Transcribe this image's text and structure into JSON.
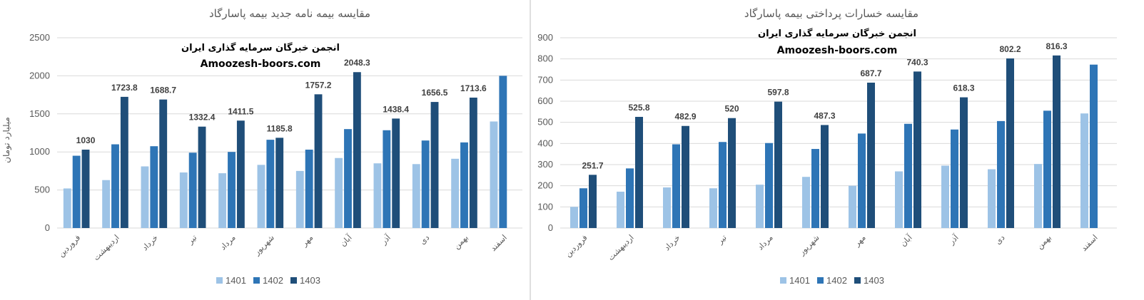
{
  "colors": {
    "s1401": "#9dc3e6",
    "s1402": "#2e75b6",
    "s1403": "#1f4e79",
    "grid": "#d9d9d9",
    "divider": "#bfbfbf"
  },
  "chart_data": [
    {
      "type": "bar",
      "title": "مقایسه بیمه نامه جدید بیمه پاسارگاد",
      "watermark": [
        "انجمن خبرگان سرمایه گذاری ایران",
        "Amoozesh-boors.com"
      ],
      "ylabel": "میلیارد تومان",
      "xlabel": "",
      "ylim": [
        0,
        2500
      ],
      "yticks": [
        0,
        500,
        1000,
        1500,
        2000,
        2500
      ],
      "grid": true,
      "legend_position": "bottom",
      "categories": [
        "فروردین",
        "اردیبهشت",
        "خرداد",
        "تیر",
        "مرداد",
        "شهریور",
        "مهر",
        "آبان",
        "آذر",
        "دی",
        "بهمن",
        "اسفند"
      ],
      "series": [
        {
          "name": "1401",
          "values": [
            520,
            630,
            810,
            730,
            720,
            830,
            750,
            920,
            850,
            840,
            910,
            1400
          ]
        },
        {
          "name": "1402",
          "values": [
            950,
            1100,
            1075,
            990,
            1000,
            1160,
            1030,
            1300,
            1285,
            1150,
            1125,
            2000
          ]
        },
        {
          "name": "1403",
          "values": [
            1030,
            1723.8,
            1688.7,
            1332.4,
            1411.5,
            1185.8,
            1757.2,
            2048.3,
            1438.4,
            1656.5,
            1713.6,
            null
          ]
        }
      ],
      "data_labels": [
        "1030",
        "1723.8",
        "1688.7",
        "1332.4",
        "1411.5",
        "1185.8",
        "1757.2",
        "2048.3",
        "1438.4",
        "1656.5",
        "1713.6",
        ""
      ]
    },
    {
      "type": "bar",
      "title": "مقایسه خسارات پرداختی بیمه پاسارگاد",
      "watermark": [
        "انجمن خبرگان سرمایه گذاری ایران",
        "Amoozesh-boors.com"
      ],
      "ylabel": "",
      "xlabel": "",
      "ylim": [
        0,
        900
      ],
      "yticks": [
        0,
        100,
        200,
        300,
        400,
        500,
        600,
        700,
        800,
        900
      ],
      "grid": true,
      "legend_position": "bottom",
      "categories": [
        "فروردین",
        "اردیبهشت",
        "خرداد",
        "تیر",
        "مرداد",
        "شهریور",
        "مهر",
        "آبان",
        "آذر",
        "دی",
        "بهمن",
        "اسفند"
      ],
      "series": [
        {
          "name": "1401",
          "values": [
            100,
            172,
            192,
            188,
            205,
            242,
            200,
            268,
            295,
            278,
            303,
            542
          ]
        },
        {
          "name": "1402",
          "values": [
            188,
            282,
            396,
            407,
            402,
            374,
            447,
            493,
            466,
            506,
            555,
            773
          ]
        },
        {
          "name": "1403",
          "values": [
            251.7,
            525.8,
            482.9,
            520,
            597.8,
            487.3,
            687.7,
            740.3,
            618.3,
            802.2,
            816.3,
            null
          ]
        }
      ],
      "data_labels": [
        "251.7",
        "525.8",
        "482.9",
        "520",
        "597.8",
        "487.3",
        "687.7",
        "740.3",
        "618.3",
        "802.2",
        "816.3",
        ""
      ]
    }
  ]
}
